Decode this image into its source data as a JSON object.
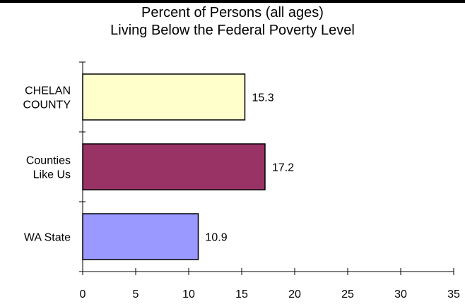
{
  "chart_data": {
    "type": "bar",
    "orientation": "horizontal",
    "title": [
      "Percent of Persons (all ages)",
      "Living Below the Federal Poverty Level"
    ],
    "categories": [
      [
        "CHELAN",
        "COUNTY"
      ],
      [
        "Counties",
        "Like Us"
      ],
      [
        "WA State"
      ]
    ],
    "values": [
      15.3,
      17.2,
      10.9
    ],
    "data_labels": [
      "15.3",
      "17.2",
      "10.9"
    ],
    "colors": [
      "#ffffcc",
      "#993366",
      "#9999ff"
    ],
    "xlim": [
      0,
      35
    ],
    "xticks": [
      0,
      5,
      10,
      15,
      20,
      25,
      30,
      35
    ],
    "xlabel": "",
    "ylabel": "",
    "grid": false,
    "legend": "none"
  }
}
